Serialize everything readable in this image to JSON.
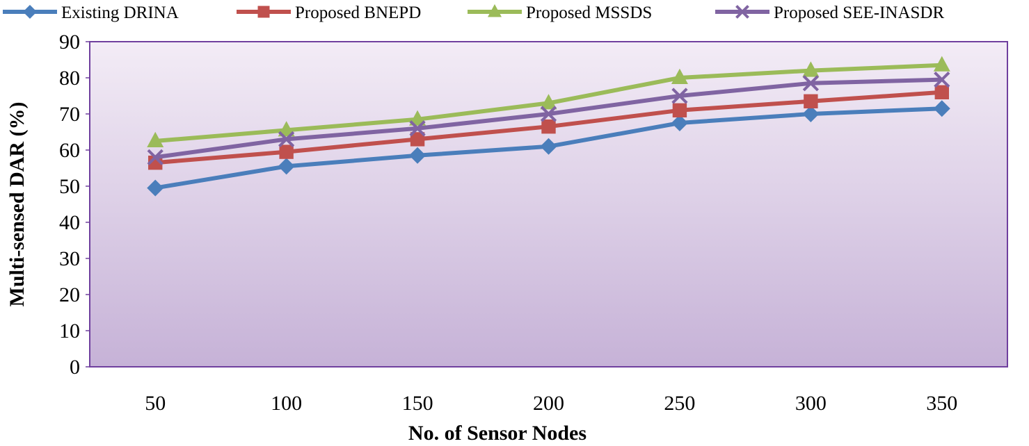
{
  "chart_data": {
    "type": "line",
    "title": "",
    "xlabel": "No. of Sensor Nodes",
    "ylabel": "Multi-sensed DAR (%)",
    "categories": [
      "50",
      "100",
      "150",
      "200",
      "250",
      "300",
      "350"
    ],
    "ylim": [
      0,
      90
    ],
    "yticks": [
      0,
      10,
      20,
      30,
      40,
      50,
      60,
      70,
      80,
      90
    ],
    "grid": false,
    "legend_position": "top",
    "series": [
      {
        "name": "Existing DRINA",
        "color": "#4a7ebb",
        "marker": "diamond",
        "values": [
          49.5,
          55.5,
          58.5,
          61,
          67.5,
          70,
          71.5
        ]
      },
      {
        "name": "Proposed BNEPD",
        "color": "#c0504d",
        "marker": "square",
        "values": [
          56.5,
          59.5,
          63,
          66.5,
          71,
          73.5,
          76
        ]
      },
      {
        "name": "Proposed MSSDS",
        "color": "#9bbb59",
        "marker": "triangle",
        "values": [
          62.5,
          65.5,
          68.5,
          73,
          80,
          82,
          83.5
        ]
      },
      {
        "name": "Proposed SEE-INASDR",
        "color": "#8064a2",
        "marker": "x",
        "values": [
          58,
          63,
          66,
          70,
          75,
          78.5,
          79.5
        ]
      }
    ]
  }
}
